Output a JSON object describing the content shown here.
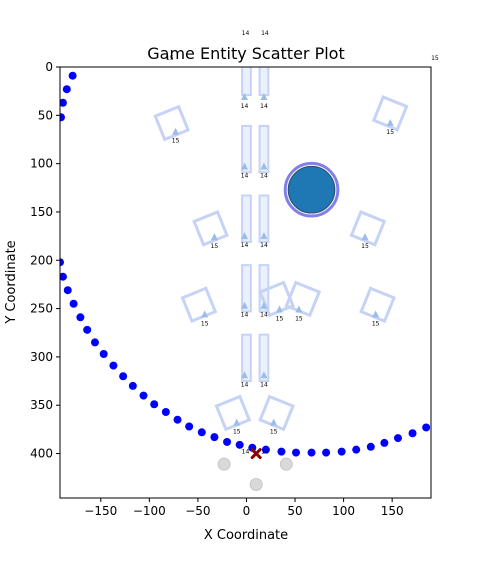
{
  "chart_data": {
    "type": "scatter",
    "title": "Game Entity Scatter Plot",
    "xlabel": "X Coordinate",
    "ylabel": "Y Coordinate",
    "xlim": [
      -192,
      190
    ],
    "ylim": [
      446,
      0
    ],
    "y_inverted": true,
    "grid": false,
    "legend": "none",
    "x_ticks": [
      -150,
      -100,
      -50,
      0,
      50,
      100,
      150
    ],
    "x_tick_labels": [
      "−150",
      "−100",
      "−50",
      "0",
      "50",
      "100",
      "150"
    ],
    "y_ticks": [
      0,
      50,
      100,
      150,
      200,
      250,
      300,
      350,
      400
    ],
    "y_tick_labels": [
      "0",
      "50",
      "100",
      "150",
      "200",
      "250",
      "300",
      "350",
      "400"
    ],
    "colors": {
      "path": "#0000ff",
      "rect_fill": "#dbe3fb",
      "rect_edge": "#c6d3f7",
      "triangle": "#9cbcea",
      "player_fill": "#1f77b4",
      "player_ring": "#8080e8",
      "enemy": "#8b0000",
      "grey": "#d9d9d9",
      "axis": "#000000"
    },
    "path_points": [
      [
        -179,
        9
      ],
      [
        -185,
        23
      ],
      [
        -189,
        37
      ],
      [
        -191,
        52
      ],
      [
        -192,
        202
      ],
      [
        -189,
        217
      ],
      [
        -184,
        231
      ],
      [
        -178,
        245
      ],
      [
        -171,
        259
      ],
      [
        -164,
        272
      ],
      [
        -156,
        285
      ],
      [
        -147,
        297
      ],
      [
        -137,
        309
      ],
      [
        -127,
        320
      ],
      [
        -117,
        330
      ],
      [
        -106,
        340
      ],
      [
        -95,
        349
      ],
      [
        -83,
        357
      ],
      [
        -71,
        365
      ],
      [
        -59,
        372
      ],
      [
        -46,
        378
      ],
      [
        -33,
        383
      ],
      [
        -20,
        388
      ],
      [
        -7,
        391
      ],
      [
        6,
        394
      ],
      [
        20,
        396
      ],
      [
        36,
        398
      ],
      [
        51,
        399
      ],
      [
        67,
        399
      ],
      [
        82,
        399
      ],
      [
        98,
        398
      ],
      [
        113,
        396
      ],
      [
        128,
        393
      ],
      [
        142,
        389
      ],
      [
        156,
        384
      ],
      [
        171,
        379
      ],
      [
        185,
        373
      ]
    ],
    "walls": [
      {
        "x": 0,
        "y": 14,
        "w": 9,
        "h": 30,
        "angle": 0
      },
      {
        "x": 18,
        "y": 14,
        "w": 9,
        "h": 30,
        "angle": 0
      },
      {
        "x": 0,
        "y": 85,
        "w": 9,
        "h": 48,
        "angle": 0
      },
      {
        "x": 18,
        "y": 85,
        "w": 9,
        "h": 48,
        "angle": 0
      },
      {
        "x": 0,
        "y": 157,
        "w": 9,
        "h": 48,
        "angle": 0
      },
      {
        "x": 18,
        "y": 157,
        "w": 9,
        "h": 48,
        "angle": 0
      },
      {
        "x": 0,
        "y": 229,
        "w": 9,
        "h": 48,
        "angle": 0
      },
      {
        "x": 18,
        "y": 229,
        "w": 9,
        "h": 48,
        "angle": 0
      },
      {
        "x": 0,
        "y": 301,
        "w": 9,
        "h": 48,
        "angle": 0
      },
      {
        "x": 18,
        "y": 301,
        "w": 9,
        "h": 48,
        "angle": 0
      },
      {
        "x": -77,
        "y": 58,
        "w": 26,
        "h": 26,
        "angle": -22
      },
      {
        "x": 148,
        "y": 48,
        "w": 26,
        "h": 26,
        "angle": 22
      },
      {
        "x": -37,
        "y": 167,
        "w": 26,
        "h": 26,
        "angle": -22
      },
      {
        "x": 125,
        "y": 167,
        "w": 26,
        "h": 26,
        "angle": 22
      },
      {
        "x": -49,
        "y": 246,
        "w": 26,
        "h": 26,
        "angle": -22
      },
      {
        "x": 135,
        "y": 246,
        "w": 26,
        "h": 26,
        "angle": 22
      },
      {
        "x": 31,
        "y": 240,
        "w": 26,
        "h": 26,
        "angle": -22
      },
      {
        "x": 58,
        "y": 240,
        "w": 26,
        "h": 26,
        "angle": 22
      },
      {
        "x": -14,
        "y": 358,
        "w": 26,
        "h": 26,
        "angle": -22
      },
      {
        "x": 31,
        "y": 358,
        "w": 26,
        "h": 26,
        "angle": 22
      }
    ],
    "markers": [
      {
        "x": -73,
        "y": 67,
        "label": "15"
      },
      {
        "x": -2,
        "y": 31,
        "label": "14"
      },
      {
        "x": 18,
        "y": 31,
        "label": "14"
      },
      {
        "x": 148,
        "y": 58,
        "label": "15"
      },
      {
        "x": -2,
        "y": 103,
        "label": "14"
      },
      {
        "x": 18,
        "y": 103,
        "label": "14"
      },
      {
        "x": -33,
        "y": 176,
        "label": "15"
      },
      {
        "x": -2,
        "y": 175,
        "label": "14"
      },
      {
        "x": 18,
        "y": 175,
        "label": "14"
      },
      {
        "x": 122,
        "y": 176,
        "label": "15"
      },
      {
        "x": -43,
        "y": 256,
        "label": "15"
      },
      {
        "x": -2,
        "y": 247,
        "label": "14"
      },
      {
        "x": 18,
        "y": 247,
        "label": "14"
      },
      {
        "x": 34,
        "y": 251,
        "label": "15"
      },
      {
        "x": 54,
        "y": 251,
        "label": "15"
      },
      {
        "x": 133,
        "y": 256,
        "label": "15"
      },
      {
        "x": -2,
        "y": 319,
        "label": "14"
      },
      {
        "x": 18,
        "y": 319,
        "label": "14"
      },
      {
        "x": -10,
        "y": 368,
        "label": "15"
      },
      {
        "x": 28,
        "y": 368,
        "label": "15"
      }
    ],
    "floating_labels": [
      {
        "x": -1,
        "y": -33,
        "label": "14"
      },
      {
        "x": 19,
        "y": -33,
        "label": "14"
      },
      {
        "x": -79,
        "y": -7,
        "label": "15"
      },
      {
        "x": 194,
        "y": -7,
        "label": "15"
      },
      {
        "x": -1,
        "y": 400,
        "label": "14"
      },
      {
        "x": 19,
        "y": 400,
        "label": "14"
      }
    ],
    "player": {
      "x": 67,
      "y": 127,
      "r": 24
    },
    "enemy": {
      "x": 10,
      "y": 400
    },
    "neutral_points": [
      {
        "x": -23,
        "y": 411
      },
      {
        "x": 10,
        "y": 432
      },
      {
        "x": 41,
        "y": 411
      }
    ]
  }
}
